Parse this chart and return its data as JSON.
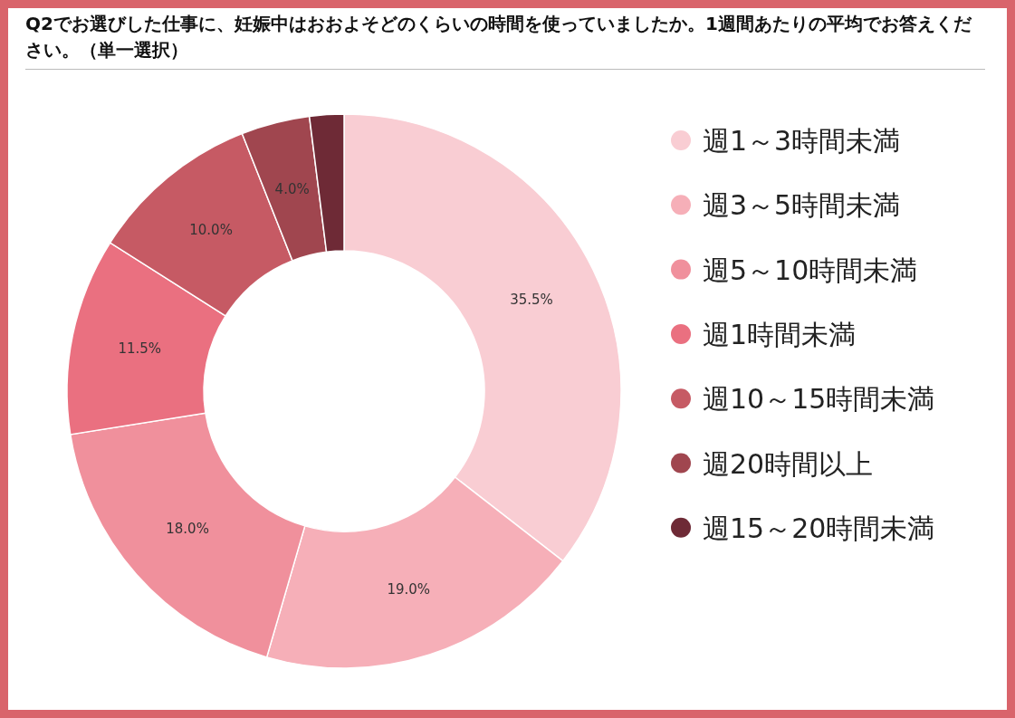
{
  "chart_data": {
    "type": "donut",
    "title": "Q2でお選びした仕事に、妊娠中はおおよそどのくらいの時間を使っていましたか。1週間あたりの平均でお答えください。（単一選択）",
    "categories": [
      "週1～3時間未満",
      "週3～5時間未満",
      "週5～10時間未満",
      "週1時間未満",
      "週10～15時間未満",
      "週20時間以上",
      "週15～20時間未満"
    ],
    "values": [
      35.5,
      19.0,
      18.0,
      11.5,
      10.0,
      4.0,
      2.0
    ],
    "value_labels": [
      "35.5%",
      "19.0%",
      "18.0%",
      "11.5%",
      "10.0%",
      "4.0%",
      null
    ],
    "colors": [
      "#f9cdd3",
      "#f6afb8",
      "#f0909c",
      "#ea7080",
      "#c65a64",
      "#a0464f",
      "#6e2a36"
    ],
    "legend": "right"
  }
}
